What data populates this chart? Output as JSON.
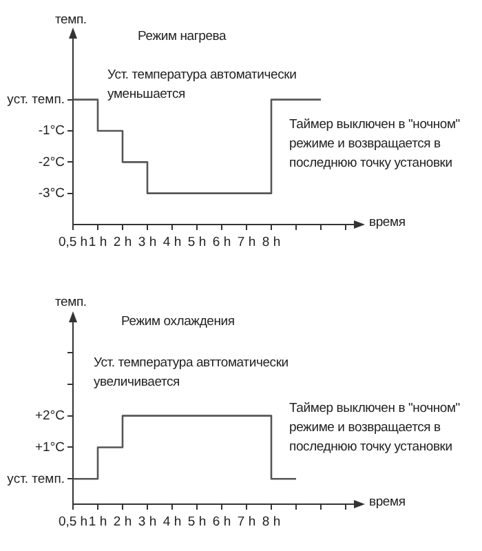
{
  "chart_data": [
    {
      "type": "step",
      "title": "Режим нагрева",
      "xlabel": "время",
      "ylabel": "темп.",
      "categories": [
        "0,5 h",
        "1 h",
        "2 h",
        "3 h",
        "4 h",
        "5 h",
        "6 h",
        "7 h",
        "8 h",
        null,
        null,
        null
      ],
      "series": [
        {
          "color": "#555555",
          "values": [
            0,
            -1,
            -2,
            -3,
            -3,
            -3,
            -3,
            -3,
            0,
            0,
            0,
            null
          ]
        }
      ],
      "ylim": [
        -4,
        2
      ],
      "yticks": [
        {
          "value": 0,
          "label": "уст. темп."
        },
        {
          "value": -1,
          "label": "-1°C"
        },
        {
          "value": -2,
          "label": "-2°C"
        },
        {
          "value": -3,
          "label": "-3°C"
        }
      ],
      "annotations": [
        "Уст. температура автоматически уменьшается",
        "Таймер выключен в \"ночном\" режиме и возвращается в последнюю точку установки"
      ],
      "grid": false,
      "legend": false,
      "marker": "none",
      "line_style": "solid"
    },
    {
      "type": "step",
      "title": "Режим охлаждения",
      "xlabel": "время",
      "ylabel": "темп.",
      "categories": [
        "0,5 h",
        "1 h",
        "2 h",
        "3 h",
        "4 h",
        "5 h",
        "6 h",
        "7 h",
        "8 h",
        null,
        null,
        null
      ],
      "series": [
        {
          "color": "#555555",
          "values": [
            0,
            1,
            2,
            2,
            2,
            2,
            2,
            2,
            0,
            0,
            null,
            null
          ]
        }
      ],
      "ylim": [
        -0.8,
        5
      ],
      "yticks": [
        {
          "value": 0,
          "label": "уст. темп."
        },
        {
          "value": 1,
          "label": "+1°C"
        },
        {
          "value": 2,
          "label": "+2°C"
        },
        {
          "value": 3,
          "label": null
        },
        {
          "value": 4,
          "label": null
        }
      ],
      "annotations": [
        "Уст. температура авттоматически увеличивается",
        "Таймер выключен в \"ночном\" режиме и возвращается в последнюю точку установки"
      ],
      "grid": false,
      "legend": false,
      "marker": "none",
      "line_style": "solid"
    }
  ]
}
